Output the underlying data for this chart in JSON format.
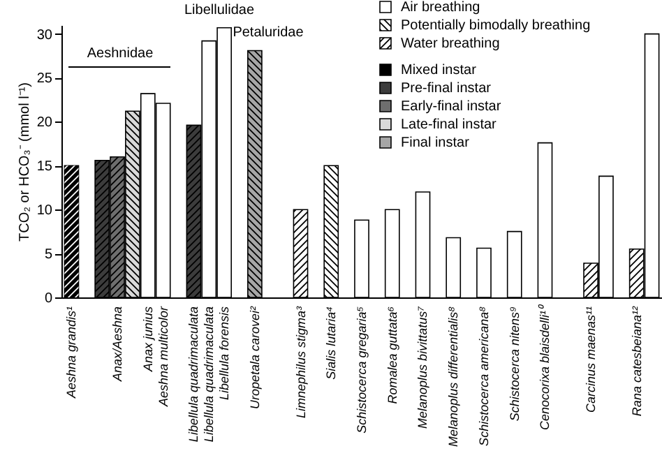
{
  "chart_data": {
    "type": "bar",
    "ylabel": "TCO₂ or HCO₃⁻ (mmol l⁻¹)",
    "categories": [
      "Aeshna grandis¹",
      null,
      null,
      "Anax/Aeshna",
      null,
      "Anax junius",
      "Aeshna multicolor",
      null,
      "Libellula quadrimaculata",
      "Libellula quadrimaculata",
      "Libellula forensis",
      null,
      "Uropetala carovei²",
      null,
      null,
      "Limnephilus stigma³",
      null,
      "Sialis lutaria⁴",
      null,
      "Schistocerca gregaria⁵",
      null,
      "Romalea guttata⁶",
      null,
      "Melanoplus bivittatus⁷",
      null,
      "Melanoplus differentialis⁸",
      null,
      "Schistocerca americana⁸",
      null,
      "Schistocerca nitens⁹",
      null,
      "Cenocorixa blaisdelli¹⁰",
      null,
      null,
      "Carcinus maenas¹¹",
      null,
      null,
      "Rana catesbeiana¹²",
      null
    ],
    "series": [
      {
        "name": "Air breathing",
        "color": "#ffffff",
        "values": [
          null,
          null,
          null,
          null,
          null,
          23.2,
          22.1,
          null,
          null,
          29.2,
          30.7,
          null,
          null,
          null,
          null,
          null,
          null,
          null,
          null,
          8.8,
          null,
          10.0,
          null,
          12.0,
          null,
          6.8,
          null,
          5.6,
          null,
          7.5,
          null,
          17.6,
          null,
          null,
          null,
          13.8,
          null,
          null,
          30.0
        ]
      },
      {
        "name": "Potentially bimodally breathing",
        "color": "#ffffff",
        "values": [
          null,
          null,
          null,
          null,
          21.2,
          null,
          null,
          null,
          null,
          null,
          null,
          null,
          28.1,
          null,
          null,
          null,
          null,
          15.0,
          null,
          null,
          null,
          null,
          null,
          null,
          null,
          null,
          null,
          null,
          null,
          null,
          null,
          null,
          null,
          null,
          null,
          null,
          null,
          null,
          null
        ],
        "colors": [
          null,
          null,
          null,
          null,
          "#d9d9d9",
          null,
          null,
          null,
          null,
          null,
          null,
          null,
          "#a6a6a6",
          null,
          null,
          null,
          null,
          "#ffffff",
          null,
          null,
          null,
          null,
          null,
          null,
          null,
          null,
          null,
          null,
          null,
          null,
          null,
          null,
          null,
          null,
          null,
          null,
          null,
          null,
          null
        ]
      },
      {
        "name": "Water breathing",
        "color": "#ffffff",
        "values": [
          15.0,
          null,
          15.6,
          16.0,
          null,
          null,
          null,
          null,
          19.6,
          null,
          null,
          null,
          null,
          null,
          null,
          10.0,
          null,
          null,
          null,
          null,
          null,
          null,
          null,
          null,
          null,
          null,
          null,
          null,
          null,
          null,
          null,
          null,
          null,
          null,
          3.9,
          null,
          null,
          5.5,
          null
        ],
        "colors": [
          "#000000",
          null,
          "#3c3c3c",
          "#6e6e6e",
          null,
          null,
          null,
          null,
          "#3c3c3c",
          null,
          null,
          null,
          null,
          null,
          null,
          "#ffffff",
          null,
          null,
          null,
          null,
          null,
          null,
          null,
          null,
          null,
          null,
          null,
          null,
          null,
          null,
          null,
          null,
          null,
          null,
          "#ffffff",
          null,
          null,
          "#ffffff",
          null
        ]
      },
      {
        "name": "Mixed instar",
        "color": "#000000",
        "values": [
          null,
          null,
          null,
          null,
          null,
          null,
          null,
          null,
          null,
          null,
          null,
          null,
          null,
          null,
          null,
          null,
          null,
          null,
          null,
          null,
          null,
          null,
          null,
          null,
          null,
          null,
          null,
          null,
          null,
          null,
          null,
          null,
          null,
          null,
          null,
          null,
          null,
          null,
          null
        ]
      },
      {
        "name": "Pre-final instar",
        "color": "#3c3c3c",
        "values": [
          null,
          null,
          null,
          null,
          null,
          null,
          null,
          null,
          null,
          null,
          null,
          null,
          null,
          null,
          null,
          null,
          null,
          null,
          null,
          null,
          null,
          null,
          null,
          null,
          null,
          null,
          null,
          null,
          null,
          null,
          null,
          null,
          null,
          null,
          null,
          null,
          null,
          null,
          null
        ]
      },
      {
        "name": "Early-final instar",
        "color": "#6e6e6e",
        "values": [
          null,
          null,
          null,
          null,
          null,
          null,
          null,
          null,
          null,
          null,
          null,
          null,
          null,
          null,
          null,
          null,
          null,
          null,
          null,
          null,
          null,
          null,
          null,
          null,
          null,
          null,
          null,
          null,
          null,
          null,
          null,
          null,
          null,
          null,
          null,
          null,
          null,
          null,
          null
        ]
      },
      {
        "name": "Late-final instar",
        "color": "#d9d9d9",
        "values": [
          null,
          null,
          null,
          null,
          null,
          null,
          null,
          null,
          null,
          null,
          null,
          null,
          null,
          null,
          null,
          null,
          null,
          null,
          null,
          null,
          null,
          null,
          null,
          null,
          null,
          null,
          null,
          null,
          null,
          null,
          null,
          null,
          null,
          null,
          null,
          null,
          null,
          null,
          null
        ]
      },
      {
        "name": "Final instar",
        "color": "#a6a6a6",
        "values": [
          null,
          null,
          null,
          null,
          null,
          null,
          null,
          null,
          null,
          null,
          null,
          null,
          null,
          null,
          null,
          null,
          null,
          null,
          null,
          null,
          null,
          null,
          null,
          null,
          null,
          null,
          null,
          null,
          null,
          null,
          null,
          null,
          null,
          null,
          null,
          null,
          null,
          null,
          null
        ]
      }
    ],
    "annotations": [
      "Aeshnidae",
      "Libellulidae",
      "Petaluridae"
    ],
    "ylim": [
      0,
      31
    ],
    "yticks": [
      0,
      5,
      10,
      15,
      20,
      25,
      30
    ],
    "legend": "top right"
  }
}
